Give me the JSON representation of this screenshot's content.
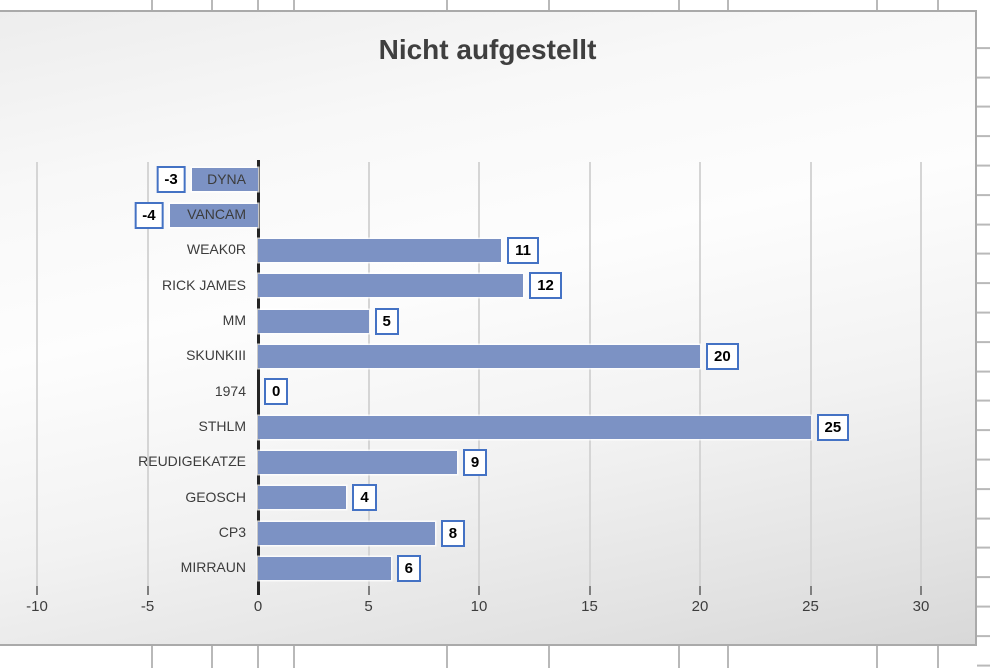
{
  "chart_data": {
    "type": "bar",
    "orientation": "horizontal",
    "title": "Nicht aufgestellt",
    "categories": [
      "DYNA",
      "VANCAM",
      "WEAK0R",
      "RICK JAMES",
      "MM",
      "SKUNKIII",
      "1974",
      "STHLM",
      "REUDIGEKATZE",
      "GEOSCH",
      "CP3",
      "MIRRAUN"
    ],
    "values": [
      -3,
      -4,
      11,
      12,
      5,
      20,
      0,
      25,
      9,
      4,
      8,
      6
    ],
    "x_ticks": [
      -10,
      -5,
      0,
      5,
      10,
      15,
      20,
      25,
      30
    ],
    "xlim": [
      -10.5,
      32.5
    ],
    "data_labels": true,
    "gridlines": "vertical",
    "legend": "none",
    "colors": {
      "bar_fill": "#7c92c4",
      "data_label_border": "#4472c4",
      "data_label_text": "#000000",
      "title_text": "#3f3f3f",
      "axis_line": "#242424",
      "gridline": "#d5d5d5",
      "tick_text": "#3d3d3d"
    }
  }
}
